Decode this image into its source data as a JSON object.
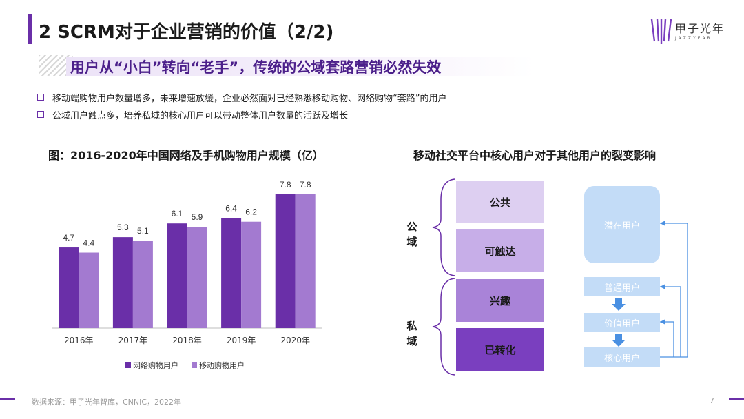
{
  "header": {
    "title": "2 SCRM对于企业营销的价值（2/2)",
    "logo_cn": "甲子光年",
    "logo_en": "JAZZYEAR"
  },
  "subtitle": "用户从“小白”转向“老手”，传统的公域套路营销必然失效",
  "bullets": [
    "移动端购物用户数量增多，未来增速放缓，企业必然面对已经熟悉移动购物、网络购物“套路”的用户",
    "公域用户触点多，培养私域的核心用户可以带动整体用户数量的活跃及增长"
  ],
  "left_chart_title": "图：2016-2020年中国网络及手机购物用户规模（亿）",
  "right_title": "移动社交平台中核心用户对于其他用户的裂变影响",
  "chart_data": {
    "type": "bar",
    "categories": [
      "2016年",
      "2017年",
      "2018年",
      "2019年",
      "2020年"
    ],
    "series": [
      {
        "name": "网络购物用户",
        "values": [
          4.7,
          5.3,
          6.1,
          6.4,
          7.8
        ],
        "color": "#6a2fa8"
      },
      {
        "name": "移动购物用户",
        "values": [
          4.4,
          5.1,
          5.9,
          6.2,
          7.8
        ],
        "color": "#a37ad0"
      }
    ],
    "title": "图：2016-2020年中国网络及手机购物用户规模（亿）",
    "xlabel": "",
    "ylabel": "",
    "ylim": [
      0,
      8.6
    ],
    "grid": false,
    "legend": "bottom"
  },
  "diagram": {
    "public_group": "公域",
    "private_group": "私域",
    "stages": [
      {
        "label": "公共",
        "color": "#ddcff1"
      },
      {
        "label": "可触达",
        "color": "#c7aee8"
      },
      {
        "label": "兴趣",
        "color": "#a983d8"
      },
      {
        "label": "已转化",
        "color": "#7a3fbf"
      }
    ],
    "users": [
      "潜在用户",
      "普通用户",
      "价值用户",
      "核心用户"
    ],
    "user_color": "#c3dcf7",
    "arrow_color": "#4a90e2"
  },
  "footer": {
    "source": "数据来源：甲子光年智库，CNNIC，2022年",
    "page": "7"
  }
}
